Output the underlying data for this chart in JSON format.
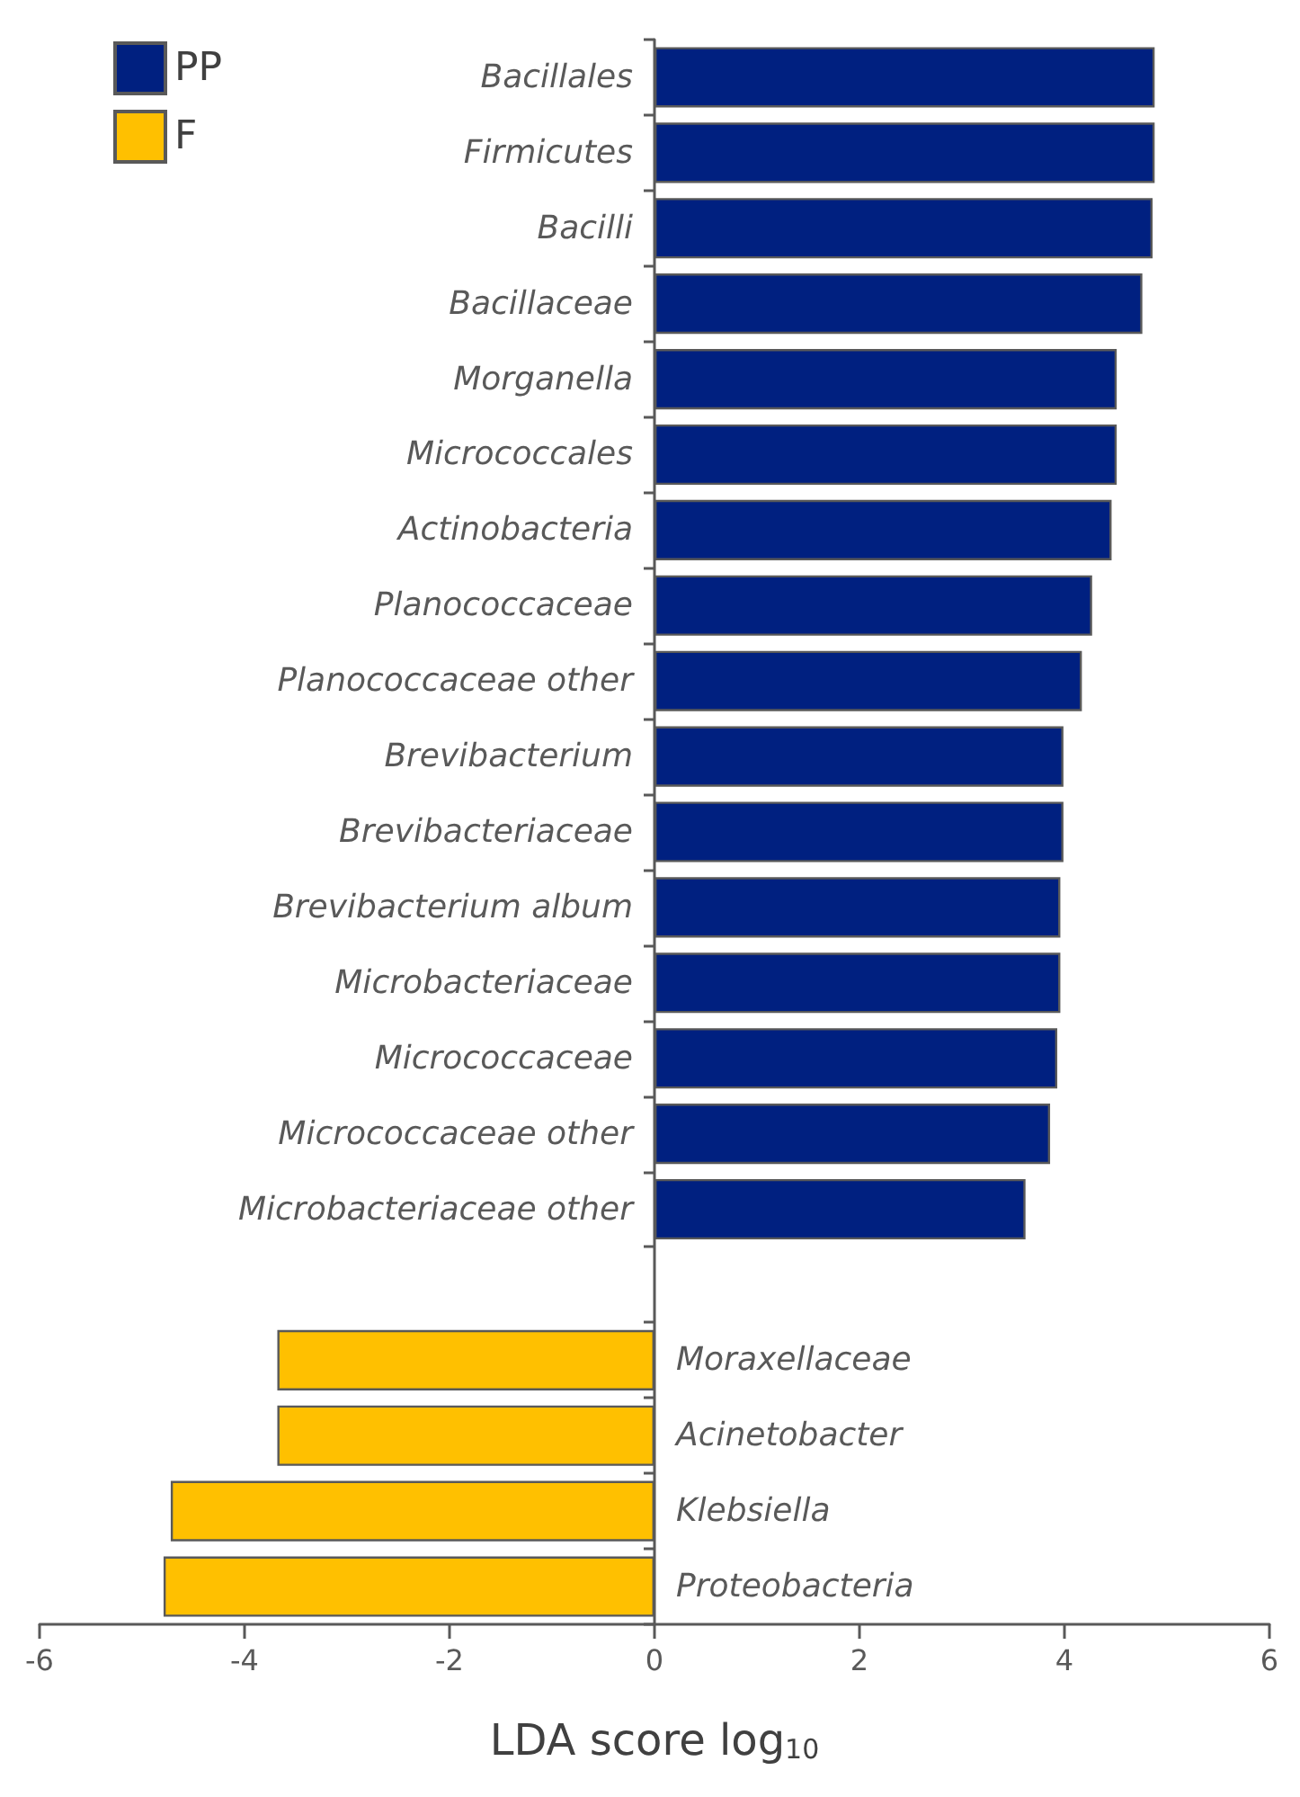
{
  "chart_data": {
    "type": "bar",
    "orientation": "horizontal",
    "stacked": true,
    "xlabel": "LDA score log$_{10}$",
    "categories": [
      "Bacillales",
      "Firmicutes",
      "Bacilli",
      "Bacillaceae",
      "Morganella",
      "Micrococcales",
      "Actinobacteria",
      "Planococcaceae",
      "Planococcaceae other",
      "Brevibacterium",
      "Brevibacteriaceae",
      "Brevibacterium album",
      "Microbacteriaceae",
      "Micrococcaceae",
      "Micrococcaceae other",
      "Microbacteriaceae other",
      null,
      "Moraxellaceae",
      "Acinetobacter",
      "Klebsiella",
      "Proteobacteria"
    ],
    "series": [
      {
        "name": "PP",
        "color": "#002080",
        "values": [
          4.88,
          4.88,
          4.86,
          4.76,
          4.51,
          4.51,
          4.46,
          4.27,
          4.17,
          3.99,
          3.99,
          3.96,
          3.96,
          3.93,
          3.86,
          3.62,
          null,
          null,
          null,
          null,
          null
        ]
      },
      {
        "name": "F",
        "color": "#ffc000",
        "values": [
          null,
          null,
          null,
          null,
          null,
          null,
          null,
          null,
          null,
          null,
          null,
          null,
          null,
          null,
          null,
          null,
          null,
          -3.68,
          -3.68,
          -4.72,
          -4.79
        ]
      }
    ],
    "xlim": [
      -6,
      6
    ],
    "xticks": [
      -6,
      -4,
      -2,
      0,
      2,
      4,
      6
    ],
    "grid": false,
    "legend": "top left"
  }
}
